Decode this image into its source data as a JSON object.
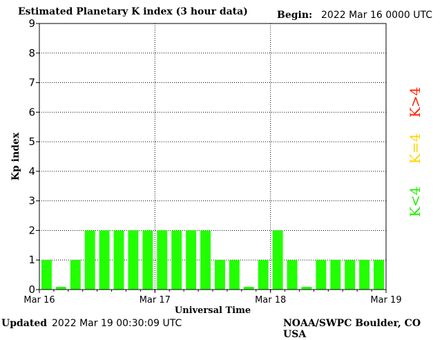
{
  "header": {
    "title": "Estimated Planetary K index (3 hour data)",
    "begin_label": "Begin:",
    "begin_value": "2022 Mar 16 0000 UTC"
  },
  "footer": {
    "updated_label": "Updated",
    "updated_value": "2022 Mar 19 00:30:09 UTC",
    "credit": "NOAA/SWPC Boulder, CO USA"
  },
  "legend": [
    {
      "label": "K>4",
      "color": "#ff2200"
    },
    {
      "label": "K=4",
      "color": "#ffd400"
    },
    {
      "label": "K<4",
      "color": "#22ee00"
    }
  ],
  "chart_data": {
    "type": "bar",
    "xlabel": "Universal Time",
    "ylabel": "Kp index",
    "ylim": [
      0,
      9
    ],
    "yticks": [
      0,
      1,
      2,
      3,
      4,
      5,
      6,
      7,
      8,
      9
    ],
    "xtick_labels": [
      "Mar 16",
      "Mar 17",
      "Mar 18",
      "Mar 19"
    ],
    "bins_per_day": 8,
    "grid": true,
    "bar_color": "#22ff00",
    "values": [
      1,
      0,
      1,
      2,
      2,
      2,
      2,
      2,
      2,
      2,
      2,
      2,
      1,
      1,
      0,
      1,
      2,
      1,
      0,
      1,
      1,
      1,
      1,
      1
    ]
  }
}
